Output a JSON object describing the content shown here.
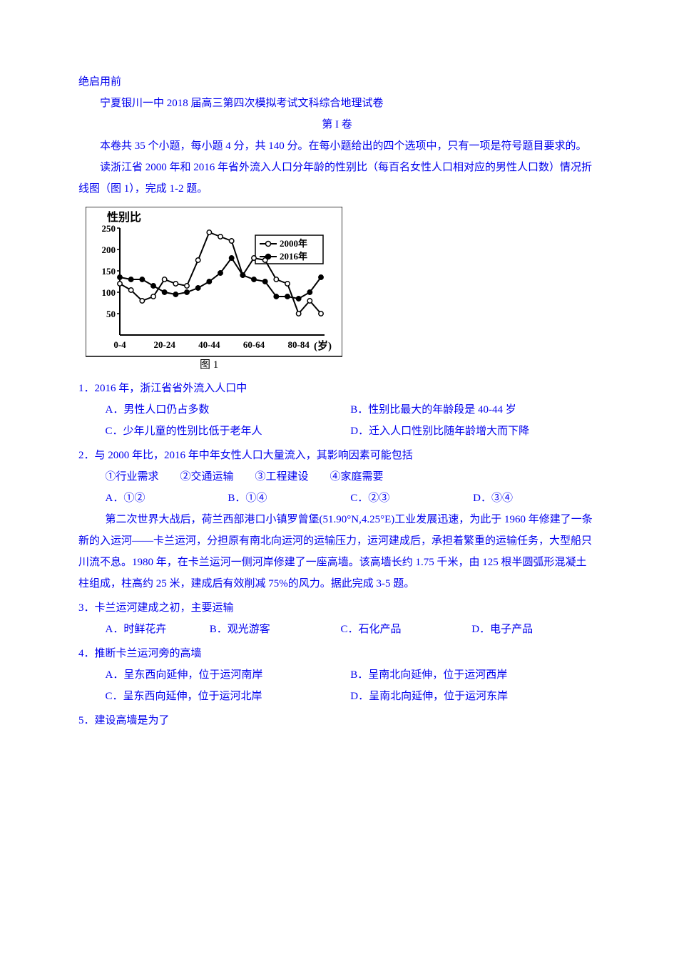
{
  "header": {
    "prefix": "绝启用前",
    "title": "宁夏银川一中 2018 届高三第四次模拟考试文科综合地理试卷",
    "section": "第 I 卷"
  },
  "intro": {
    "line1": "本卷共 35 个小题，每小题 4 分，共 140 分。在每小题给出的四个选项中，只有一项是符号题目要求的。",
    "line2": "读浙江省 2000 年和 2016 年省外流入人口分年龄的性别比（每百名女性人口相对应的男性人口数）情况折线图（图 1），完成 1-2 题。"
  },
  "chart": {
    "type": "line",
    "y_label": "性别比",
    "y_label_fontsize": 15,
    "y_label_fontweight": "bold",
    "x_label": "(岁)",
    "x_label_fontsize": 15,
    "legend": [
      "2000年",
      "2016年"
    ],
    "legend_markers": [
      "open-circle",
      "filled-circle"
    ],
    "ylim": [
      0,
      250
    ],
    "ytick_step": 50,
    "yticks": [
      0,
      50,
      100,
      150,
      200,
      250
    ],
    "x_categories": [
      "0-4",
      "20-24",
      "40-44",
      "60-64",
      "80-84"
    ],
    "x_positions": [
      0,
      1,
      2,
      3,
      4,
      5,
      6,
      7,
      8,
      9,
      10,
      11,
      12,
      13,
      14,
      15,
      16,
      17,
      18
    ],
    "x_tick_labels_positions": [
      0,
      4,
      8,
      12,
      16
    ],
    "series_2000": {
      "color": "#000000",
      "marker": "open-circle",
      "line_width": 2,
      "values": [
        120,
        105,
        80,
        90,
        130,
        120,
        115,
        175,
        240,
        230,
        220,
        140,
        180,
        175,
        130,
        120,
        50,
        80,
        50
      ]
    },
    "series_2016": {
      "color": "#000000",
      "marker": "filled-circle",
      "line_width": 2,
      "values": [
        135,
        130,
        130,
        115,
        100,
        95,
        100,
        110,
        125,
        145,
        180,
        140,
        130,
        125,
        90,
        90,
        85,
        100,
        135
      ]
    },
    "background_color": "#ffffff",
    "axis_color": "#000000",
    "caption": "图 1"
  },
  "q1": {
    "stem": "1．2016 年，浙江省省外流入人口中",
    "optA": "A．男性人口仍占多数",
    "optB": "B．性别比最大的年龄段是 40-44 岁",
    "optC": "C．少年儿童的性别比低于老年人",
    "optD": "D．迁入人口性别比随年龄增大而下降"
  },
  "q2": {
    "stem": "2．与 2000 年比，2016 年中年女性人口大量流入，其影响因素可能包括",
    "items": "①行业需求　　②交通运输　　③工程建设　　④家庭需要",
    "optA": "A．①②",
    "optB": "B．①④",
    "optC": "C．②③",
    "optD": "D．③④"
  },
  "passage2": {
    "text": "第二次世界大战后，荷兰西部港口小镇罗曾堡(51.90°N,4.25°E)工业发展迅速，为此于 1960 年修建了一条新的入运河——卡兰运河，分担原有南北向运河的运输压力，运河建成后，承担着繁重的运输任务，大型船只川流不息。1980 年，在卡兰运河一侧河岸修建了一座高墙。该高墙长约 1.75 千米，由 125 根半圆弧形混凝土柱组成，柱高约 25 米，建成后有效削减 75%的风力。据此完成 3-5 题。"
  },
  "q3": {
    "stem": "3．卡兰运河建成之初，主要运输",
    "optA": "A．时鲜花卉",
    "optB": "B．观光游客",
    "optC": "C．石化产品",
    "optD": "D．电子产品"
  },
  "q4": {
    "stem": "4．推断卡兰运河旁的高墙",
    "optA": "A．呈东西向延伸，位于运河南岸",
    "optB": "B．呈南北向延伸，位于运河西岸",
    "optC": "C．呈东西向延伸，位于运河北岸",
    "optD": "D．呈南北向延伸，位于运河东岸"
  },
  "q5": {
    "stem": "5．建设高墙是为了"
  }
}
